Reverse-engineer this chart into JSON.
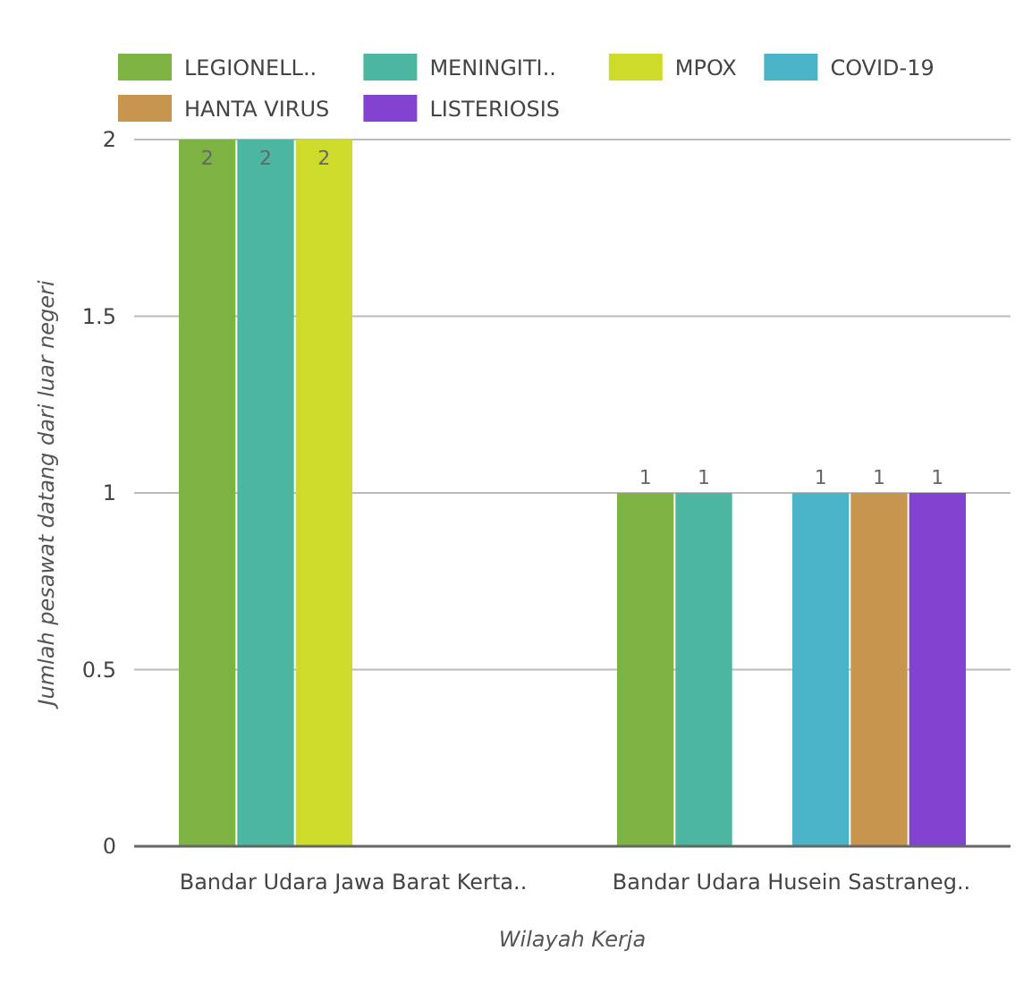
{
  "chart_data": {
    "type": "bar",
    "xlabel": "Wilayah Kerja",
    "ylabel": "Jumlah pesawat datang dari luar negeri",
    "categories": [
      "Bandar Udara Jawa Barat Kerta..",
      "Bandar Udara Husein Sastraneg.."
    ],
    "series": [
      {
        "name": "LEGIONELL..",
        "color": "#7cb342",
        "values": [
          2,
          1
        ]
      },
      {
        "name": "MENINGITI..",
        "color": "#4db6a0",
        "values": [
          2,
          1
        ]
      },
      {
        "name": "MPOX",
        "color": "#cddc2a",
        "values": [
          2,
          null
        ]
      },
      {
        "name": "COVID-19",
        "color": "#4ab3c6",
        "values": [
          null,
          1
        ]
      },
      {
        "name": "HANTA VIRUS",
        "color": "#c8954e",
        "values": [
          null,
          1
        ]
      },
      {
        "name": "LISTERIOSIS",
        "color": "#8342cf",
        "values": [
          null,
          1
        ]
      }
    ],
    "ylim": [
      0,
      2
    ],
    "yticks": [
      0,
      0.5,
      1,
      1.5,
      2
    ],
    "grid": "y",
    "legend": "top",
    "data_labels": true
  }
}
